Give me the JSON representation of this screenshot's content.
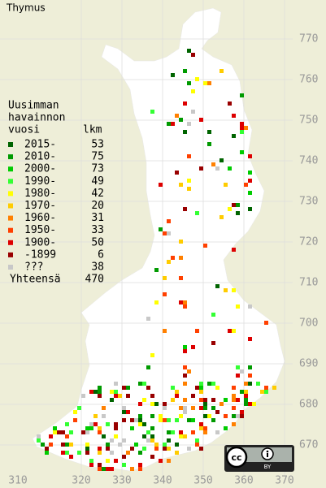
{
  "title": "Thymus",
  "legend": {
    "header": [
      "Uusimman",
      "havainnon",
      "vuosi"
    ],
    "count_header": "lkm",
    "rows": [
      {
        "label": "2015-",
        "count": 53,
        "color": "#006400"
      },
      {
        "label": "2010-",
        "count": 75,
        "color": "#009a00"
      },
      {
        "label": "2000-",
        "count": 73,
        "color": "#00cc00"
      },
      {
        "label": "1990-",
        "count": 49,
        "color": "#33ff33"
      },
      {
        "label": "1980-",
        "count": 42,
        "color": "#ffff00"
      },
      {
        "label": "1970-",
        "count": 20,
        "color": "#ffcc00"
      },
      {
        "label": "1960-",
        "count": 31,
        "color": "#ff8000"
      },
      {
        "label": "1950-",
        "count": 33,
        "color": "#ff4000"
      },
      {
        "label": "1900-",
        "count": 50,
        "color": "#dd0000"
      },
      {
        "label": "-1899",
        "count": 6,
        "color": "#990000"
      },
      {
        "label": "???",
        "count": 38,
        "color": "#c8c8c8"
      }
    ],
    "total_label": "Yhteensä",
    "total": 470
  },
  "map": {
    "y_labels": [
      770,
      760,
      750,
      740,
      730,
      720,
      710,
      700,
      690,
      680,
      670
    ],
    "x_labels": [
      310,
      320,
      330,
      340,
      350,
      360,
      370
    ]
  },
  "license": {
    "icon": "cc",
    "label": "BY"
  }
}
